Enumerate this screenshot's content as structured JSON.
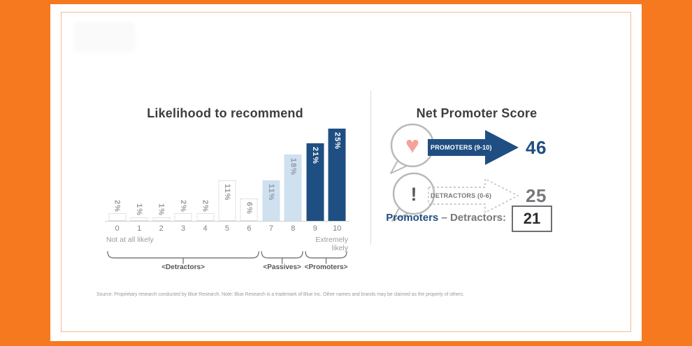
{
  "theme": {
    "orange": "#f6781f",
    "inner_border": "#f6bb8f",
    "dark_blue": "#1f4e82",
    "light_blue": "#cfe0ef",
    "gray": "#77787b",
    "salmon": "#f3a39b",
    "dotted_outline": "#c6c6c6",
    "label_gray": "#9b9b9b",
    "label_on_light": "#8d9bb0"
  },
  "chart_data": {
    "type": "bar",
    "title": "Likelihood to recommend",
    "categories": [
      "0",
      "1",
      "2",
      "3",
      "4",
      "5",
      "6",
      "7",
      "8",
      "9",
      "10"
    ],
    "values": [
      2,
      1,
      1,
      2,
      2,
      11,
      6,
      11,
      18,
      21,
      25
    ],
    "unit": "%",
    "bar_styles": [
      "dotted",
      "dotted",
      "dotted",
      "dotted",
      "dotted",
      "dotted",
      "dotted",
      "light",
      "light",
      "dark",
      "dark"
    ],
    "ylim": [
      0,
      25
    ],
    "grid": false,
    "axis_left_caption": "Not at all likely",
    "axis_right_caption": "Extremely likely",
    "groups": [
      {
        "label": "<Detractors>",
        "from": 0,
        "to": 6
      },
      {
        "label": "<Passives>",
        "from": 7,
        "to": 8
      },
      {
        "label": "<Promoters>",
        "from": 9,
        "to": 10
      }
    ]
  },
  "nps": {
    "title": "Net Promoter Score",
    "rows": [
      {
        "icon": "heart-icon",
        "icon_glyph": "♥",
        "arrow_label": "PROMOTERS (9-10)",
        "value": "46",
        "style": "solid"
      },
      {
        "icon": "exclamation-icon",
        "icon_glyph": "!",
        "arrow_label": "DETRACTORS (0-6)",
        "value": "25",
        "style": "dashed"
      }
    ],
    "formula": {
      "left": "Promoters",
      "middle": "– Detractors:",
      "result": "21"
    }
  },
  "footer": {
    "source": "Source: Proprietary research conducted by Blue Research. Note: Blue Research is a trademark of Blue Inc. Other names and brands may be claimed as the property of others."
  }
}
